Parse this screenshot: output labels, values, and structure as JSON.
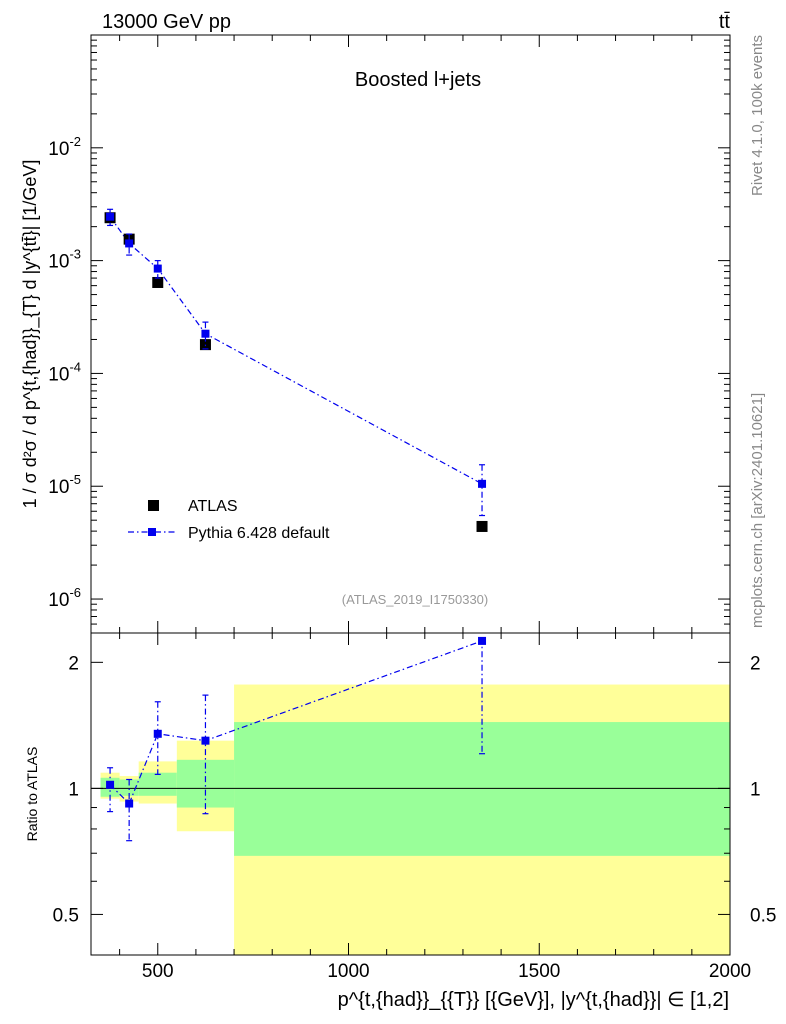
{
  "header": {
    "left": "13000 GeV pp",
    "right": "tt̄"
  },
  "side_text": {
    "rivet": "Rivet 4.1.0,  100k events",
    "mcplots": "mcplots.cern.ch [arXiv:2401.10621]"
  },
  "colors": {
    "mc": "#0000ee",
    "data": "#000000",
    "band_inner": "#99ff99",
    "band_outer": "#ffff99"
  },
  "chart_data": [
    {
      "type": "scatter",
      "title": "Boosted l+jets",
      "analysis_label": "(ATLAS_2019_I1750330)",
      "ylabel": "1 / σ d²σ / d p^{t,{had}}_{T} d |y^{tt̄}| [1/GeV]",
      "yscale": "log",
      "xlim": [
        325,
        2000
      ],
      "ylim": [
        5e-07,
        0.1
      ],
      "ytick_labels": [
        "10^-6",
        "10^-5",
        "10^-4",
        "10^-3",
        "10^-2"
      ],
      "legend": {
        "position": "bottom-left",
        "entries": [
          "ATLAS",
          "Pythia 6.428 default"
        ]
      },
      "series": [
        {
          "name": "ATLAS",
          "style": "black squares",
          "x": [
            375,
            425,
            500,
            625,
            1350
          ],
          "y": [
            0.0024,
            0.00155,
            0.00064,
            0.00018,
            4.4e-06
          ]
        },
        {
          "name": "Pythia 6.428 default",
          "style": "blue dash-dot line with square markers",
          "x": [
            375,
            425,
            500,
            625,
            1350
          ],
          "y": [
            0.00245,
            0.00142,
            0.00085,
            0.000225,
            1.05e-05
          ],
          "err_low": [
            0.0004,
            0.0003,
            0.00015,
            6e-05,
            5e-06
          ],
          "err_high": [
            0.0004,
            0.0003,
            0.00015,
            6e-05,
            5e-06
          ]
        }
      ]
    },
    {
      "type": "scatter",
      "ylabel": "Ratio to ATLAS",
      "xlabel": "p^{t,{had}}_{{T}} [{GeV}], |y^{t,{had}}| ∈ [1,2]",
      "yscale": "log",
      "xlim": [
        325,
        2000
      ],
      "ylim": [
        0.4,
        2.35
      ],
      "xtick_labels": [
        "500",
        "1000",
        "1500",
        "2000"
      ],
      "ytick_labels": [
        "0.5",
        "1",
        "2"
      ],
      "bins": [
        [
          350,
          400
        ],
        [
          400,
          450
        ],
        [
          450,
          550
        ],
        [
          550,
          700
        ],
        [
          700,
          2000
        ]
      ],
      "band_inner": [
        [
          0.955,
          1.06
        ],
        [
          0.96,
          1.05
        ],
        [
          0.96,
          1.09
        ],
        [
          0.9,
          1.17
        ],
        [
          0.69,
          1.44
        ]
      ],
      "band_outer": [
        [
          0.945,
          1.09
        ],
        [
          0.93,
          1.07
        ],
        [
          0.92,
          1.16
        ],
        [
          0.79,
          1.3
        ],
        [
          0.36,
          1.77
        ]
      ],
      "series": [
        {
          "name": "Pythia 6.428 default",
          "x": [
            375,
            425,
            500,
            625,
            1350
          ],
          "y": [
            1.02,
            0.92,
            1.35,
            1.3,
            2.25
          ],
          "err_low": [
            0.14,
            0.17,
            0.27,
            0.43,
            1.04
          ],
          "err_high": [
            0.1,
            0.13,
            0.26,
            0.37,
            0.04
          ]
        }
      ]
    }
  ]
}
